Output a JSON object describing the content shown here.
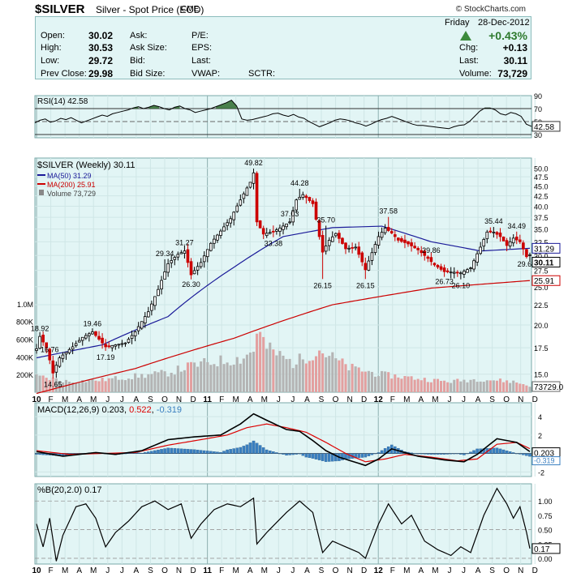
{
  "header": {
    "symbol": "$SILVER",
    "description": "Silver - Spot Price (EOD)",
    "exchange": "CME",
    "copyright": "© StockCharts.com"
  },
  "quote": {
    "left": [
      {
        "label": "Open:",
        "value": "30.02"
      },
      {
        "label": "High:",
        "value": "30.53"
      },
      {
        "label": "Low:",
        "value": "29.72"
      },
      {
        "label": "Prev Close:",
        "value": "29.98"
      }
    ],
    "middle": [
      "Ask:",
      "Ask Size:",
      "Bid:",
      "Bid Size:"
    ],
    "middle2": [
      "P/E:",
      "EPS:",
      "Last:",
      "VWAP:"
    ],
    "sctr": "SCTR:",
    "day": "Friday",
    "date": "28-Dec-2012",
    "pct_change": "+0.43%",
    "right": [
      {
        "label": "Chg:",
        "value": "+0.13"
      },
      {
        "label": "Last:",
        "value": "30.11"
      },
      {
        "label": "Volume:",
        "value": "73,729"
      }
    ]
  },
  "colors": {
    "panel_bg": "#e2f5f5",
    "up_candle": "#000000",
    "down_candle": "#cc0000",
    "ma50": "#1a1a99",
    "ma200": "#cc0000",
    "volume_up": "#b4b4b4",
    "volume_down": "#e3a0a0",
    "rsi_fill": "#2e6b2e",
    "macd_hist": "#3a7fc0",
    "signal": "#dd0000",
    "percent_b_line": "#000000"
  },
  "chart_data": [
    {
      "type": "line",
      "panel": "RSI",
      "legend": "RSI(14) 42.58",
      "last_value": "42.58",
      "ylim": [
        30,
        80
      ],
      "reference_lines": [
        30,
        70
      ],
      "y_ticks": [
        "90",
        "70",
        "50",
        "40",
        "30"
      ],
      "series": [
        {
          "name": "RSI(14)",
          "values": [
            48,
            52,
            54,
            49,
            51,
            55,
            53,
            56,
            52,
            48,
            51,
            54,
            57,
            60,
            58,
            62,
            64,
            66,
            68,
            71,
            73,
            70,
            72,
            75,
            73,
            70,
            68,
            72,
            74,
            70,
            68,
            64,
            66,
            68,
            70,
            73,
            76,
            79,
            83,
            74,
            54,
            52,
            53,
            55,
            57,
            59,
            62,
            63,
            60,
            58,
            61,
            57,
            55,
            50,
            46,
            42,
            45,
            48,
            52,
            54,
            53,
            51,
            48,
            46,
            43,
            46,
            50,
            53,
            55,
            58,
            55,
            52,
            49,
            46,
            44,
            44,
            43,
            42,
            41,
            40,
            39,
            42,
            44,
            45,
            50,
            58,
            66,
            71,
            71,
            68,
            62,
            60,
            64,
            62,
            58,
            46,
            42.58
          ]
        }
      ]
    },
    {
      "type": "candlestick",
      "panel": "price",
      "title": "$SILVER (Weekly) 30.11",
      "series_legend": [
        {
          "name": "MA(50)",
          "value": "31.29"
        },
        {
          "name": "MA(200)",
          "value": "25.91"
        },
        {
          "name": "Volume",
          "value": "73,729"
        }
      ],
      "x_labels": [
        "10",
        "F",
        "M",
        "A",
        "M",
        "J",
        "J",
        "A",
        "S",
        "O",
        "N",
        "D",
        "11",
        "F",
        "M",
        "A",
        "M",
        "J",
        "J",
        "A",
        "S",
        "O",
        "N",
        "D",
        "12",
        "F",
        "M",
        "A",
        "M",
        "J",
        "J",
        "A",
        "S",
        "O",
        "N",
        "D"
      ],
      "y_ticks": [
        15.0,
        17.5,
        20.0,
        22.5,
        25.0,
        27.5,
        30.0,
        32.5,
        35.0,
        37.5,
        40.0,
        42.5,
        45.0,
        47.5,
        50.0
      ],
      "y_tick_labels": [
        "15.0",
        "17.5",
        "20.0",
        "22.5",
        "25.0",
        "27.5",
        "30.0",
        "32.5",
        "35.0",
        "37.5",
        "40.0",
        "42.5",
        "45.0",
        "47.5",
        "50.0"
      ],
      "ylim": [
        13.5,
        53
      ],
      "volume_ticks": [
        "1.0M",
        "800K",
        "600K",
        "400K",
        "200K"
      ],
      "last_price_label": "30.11",
      "ma50_label": "31.29",
      "ma200_label": "25.91",
      "volume_last_label": "73729.0",
      "annotations": [
        {
          "text": "18.92",
          "x": 1,
          "y": 18.92
        },
        {
          "text": "16.76",
          "x": 4,
          "y": 16.76
        },
        {
          "text": "14.65",
          "x": 5,
          "y": 14.65
        },
        {
          "text": "19.46",
          "x": 17,
          "y": 19.46
        },
        {
          "text": "17.19",
          "x": 21,
          "y": 17.19
        },
        {
          "text": "29.34",
          "x": 39,
          "y": 29.34
        },
        {
          "text": "31.27",
          "x": 45,
          "y": 31.27
        },
        {
          "text": "26.30",
          "x": 47,
          "y": 26.3
        },
        {
          "text": "49.82",
          "x": 66,
          "y": 49.82
        },
        {
          "text": "37.03",
          "x": 77,
          "y": 37.03
        },
        {
          "text": "33.38",
          "x": 72,
          "y": 33.38
        },
        {
          "text": "44.28",
          "x": 80,
          "y": 44.28
        },
        {
          "text": "35.70",
          "x": 88,
          "y": 35.7
        },
        {
          "text": "26.15",
          "x": 87,
          "y": 26.15
        },
        {
          "text": "26.15",
          "x": 100,
          "y": 26.15
        },
        {
          "text": "37.58",
          "x": 107,
          "y": 37.58
        },
        {
          "text": "29.86",
          "x": 120,
          "y": 29.86
        },
        {
          "text": "26.73",
          "x": 124,
          "y": 26.73
        },
        {
          "text": "26.10",
          "x": 129,
          "y": 26.1
        },
        {
          "text": "35.44",
          "x": 139,
          "y": 35.44
        },
        {
          "text": "34.49",
          "x": 146,
          "y": 34.49
        },
        {
          "text": "29.64",
          "x": 149,
          "y": 29.64
        }
      ],
      "close_keypoints": [
        [
          0,
          17.4
        ],
        [
          1,
          18.7
        ],
        [
          3,
          17.5
        ],
        [
          5,
          15.1
        ],
        [
          7,
          16.5
        ],
        [
          11,
          17.6
        ],
        [
          14,
          18.6
        ],
        [
          17,
          19.2
        ],
        [
          21,
          17.6
        ],
        [
          27,
          18.0
        ],
        [
          30,
          19.2
        ],
        [
          34,
          21.6
        ],
        [
          37,
          24.6
        ],
        [
          40,
          28.6
        ],
        [
          43,
          30.2
        ],
        [
          45,
          30.8
        ],
        [
          47,
          26.8
        ],
        [
          50,
          28.8
        ],
        [
          53,
          32.2
        ],
        [
          56,
          34.6
        ],
        [
          59,
          37.2
        ],
        [
          62,
          41.5
        ],
        [
          65,
          46.0
        ],
        [
          66,
          48.6
        ],
        [
          67,
          36.5
        ],
        [
          69,
          34.0
        ],
        [
          72,
          34.5
        ],
        [
          74,
          35.2
        ],
        [
          77,
          36.5
        ],
        [
          79,
          41.5
        ],
        [
          81,
          42.8
        ],
        [
          84,
          40.6
        ],
        [
          86,
          33.5
        ],
        [
          87,
          30.6
        ],
        [
          89,
          32.8
        ],
        [
          91,
          34.1
        ],
        [
          94,
          31.2
        ],
        [
          97,
          31.5
        ],
        [
          100,
          27.6
        ],
        [
          102,
          30.5
        ],
        [
          104,
          33.5
        ],
        [
          106,
          35.2
        ],
        [
          108,
          34.2
        ],
        [
          110,
          32.8
        ],
        [
          113,
          32.1
        ],
        [
          116,
          31.0
        ],
        [
          119,
          29.5
        ],
        [
          121,
          28.4
        ],
        [
          124,
          27.3
        ],
        [
          127,
          27.2
        ],
        [
          129,
          27.1
        ],
        [
          132,
          27.9
        ],
        [
          135,
          31.5
        ],
        [
          137,
          34.4
        ],
        [
          139,
          34.4
        ],
        [
          141,
          33.5
        ],
        [
          143,
          31.8
        ],
        [
          145,
          33.2
        ],
        [
          147,
          32.5
        ],
        [
          149,
          29.8
        ],
        [
          150,
          30.11
        ]
      ],
      "ma50_keypoints": [
        [
          0,
          16.5
        ],
        [
          20,
          17.8
        ],
        [
          40,
          21.0
        ],
        [
          60,
          28.0
        ],
        [
          75,
          33.5
        ],
        [
          90,
          35.3
        ],
        [
          105,
          35.6
        ],
        [
          120,
          32.5
        ],
        [
          135,
          30.8
        ],
        [
          150,
          31.29
        ]
      ],
      "ma200_keypoints": [
        [
          0,
          13.4
        ],
        [
          30,
          15.5
        ],
        [
          60,
          18.5
        ],
        [
          90,
          22.5
        ],
        [
          120,
          24.8
        ],
        [
          150,
          25.91
        ]
      ],
      "volume_keypoints": [
        [
          0,
          180000
        ],
        [
          10,
          120000
        ],
        [
          20,
          140000
        ],
        [
          30,
          180000
        ],
        [
          40,
          220000
        ],
        [
          47,
          300000
        ],
        [
          55,
          350000
        ],
        [
          62,
          380000
        ],
        [
          66,
          470000
        ],
        [
          67,
          720000
        ],
        [
          70,
          500000
        ],
        [
          78,
          330000
        ],
        [
          86,
          480000
        ],
        [
          95,
          280000
        ],
        [
          105,
          200000
        ],
        [
          115,
          160000
        ],
        [
          125,
          120000
        ],
        [
          135,
          150000
        ],
        [
          145,
          120000
        ],
        [
          150,
          73729
        ]
      ]
    },
    {
      "type": "line",
      "panel": "MACD",
      "legend_prefix": "MACD(12,26,9)",
      "legend_macd": "0.203",
      "legend_signal": "0.522",
      "legend_hist": "-0.319",
      "last_labels": [
        "0.203",
        "-0.319"
      ],
      "y_ticks": [
        "4",
        "2",
        "0",
        "-2"
      ],
      "ylim": [
        -2.5,
        5.5
      ],
      "macd_keypoints": [
        [
          0,
          0.2
        ],
        [
          8,
          -0.3
        ],
        [
          18,
          0.1
        ],
        [
          24,
          -0.1
        ],
        [
          32,
          0.3
        ],
        [
          40,
          1.5
        ],
        [
          48,
          1.8
        ],
        [
          56,
          2.0
        ],
        [
          62,
          3.2
        ],
        [
          66,
          4.3
        ],
        [
          70,
          3.6
        ],
        [
          76,
          2.6
        ],
        [
          80,
          2.4
        ],
        [
          84,
          1.4
        ],
        [
          88,
          0.3
        ],
        [
          92,
          -0.4
        ],
        [
          100,
          -1.3
        ],
        [
          104,
          -0.6
        ],
        [
          108,
          0.5
        ],
        [
          116,
          -0.3
        ],
        [
          124,
          -0.7
        ],
        [
          130,
          -0.9
        ],
        [
          134,
          -0.1
        ],
        [
          140,
          1.6
        ],
        [
          146,
          1.2
        ],
        [
          150,
          0.203
        ]
      ],
      "signal_keypoints": [
        [
          0,
          0.3
        ],
        [
          10,
          -0.1
        ],
        [
          20,
          0.0
        ],
        [
          30,
          0.1
        ],
        [
          40,
          0.9
        ],
        [
          50,
          1.5
        ],
        [
          58,
          2.0
        ],
        [
          64,
          2.8
        ],
        [
          70,
          3.2
        ],
        [
          76,
          2.8
        ],
        [
          82,
          2.3
        ],
        [
          88,
          1.2
        ],
        [
          94,
          0.0
        ],
        [
          100,
          -0.9
        ],
        [
          106,
          -0.6
        ],
        [
          112,
          -0.1
        ],
        [
          120,
          -0.4
        ],
        [
          128,
          -0.8
        ],
        [
          134,
          -0.6
        ],
        [
          140,
          1.0
        ],
        [
          146,
          1.2
        ],
        [
          150,
          0.522
        ]
      ]
    },
    {
      "type": "line",
      "panel": "PercentB",
      "legend": "%B(20,2.0) 0.17",
      "last_value": "0.17",
      "y_ticks": [
        "1.00",
        "0.75",
        "0.50",
        "0.25",
        "0.00"
      ],
      "ylim": [
        -0.1,
        1.3
      ],
      "keypoints": [
        [
          0,
          0.6
        ],
        [
          2,
          0.2
        ],
        [
          4,
          0.7
        ],
        [
          6,
          -0.05
        ],
        [
          8,
          0.4
        ],
        [
          12,
          0.9
        ],
        [
          15,
          0.95
        ],
        [
          18,
          0.7
        ],
        [
          21,
          0.2
        ],
        [
          24,
          0.45
        ],
        [
          28,
          0.65
        ],
        [
          32,
          0.9
        ],
        [
          36,
          1.0
        ],
        [
          40,
          0.85
        ],
        [
          44,
          0.95
        ],
        [
          47,
          0.35
        ],
        [
          50,
          0.6
        ],
        [
          54,
          0.85
        ],
        [
          58,
          0.95
        ],
        [
          62,
          0.9
        ],
        [
          66,
          1.05
        ],
        [
          67,
          0.25
        ],
        [
          70,
          0.45
        ],
        [
          76,
          0.8
        ],
        [
          80,
          1.0
        ],
        [
          84,
          0.8
        ],
        [
          87,
          0.1
        ],
        [
          90,
          0.3
        ],
        [
          94,
          0.2
        ],
        [
          98,
          0.1
        ],
        [
          100,
          0.0
        ],
        [
          104,
          0.6
        ],
        [
          107,
          0.95
        ],
        [
          111,
          0.6
        ],
        [
          114,
          0.75
        ],
        [
          118,
          0.3
        ],
        [
          122,
          0.15
        ],
        [
          126,
          0.05
        ],
        [
          129,
          0.2
        ],
        [
          132,
          0.1
        ],
        [
          136,
          0.75
        ],
        [
          140,
          1.22
        ],
        [
          143,
          0.95
        ],
        [
          145,
          0.7
        ],
        [
          147,
          0.9
        ],
        [
          149,
          0.45
        ],
        [
          150,
          0.17
        ]
      ]
    }
  ]
}
